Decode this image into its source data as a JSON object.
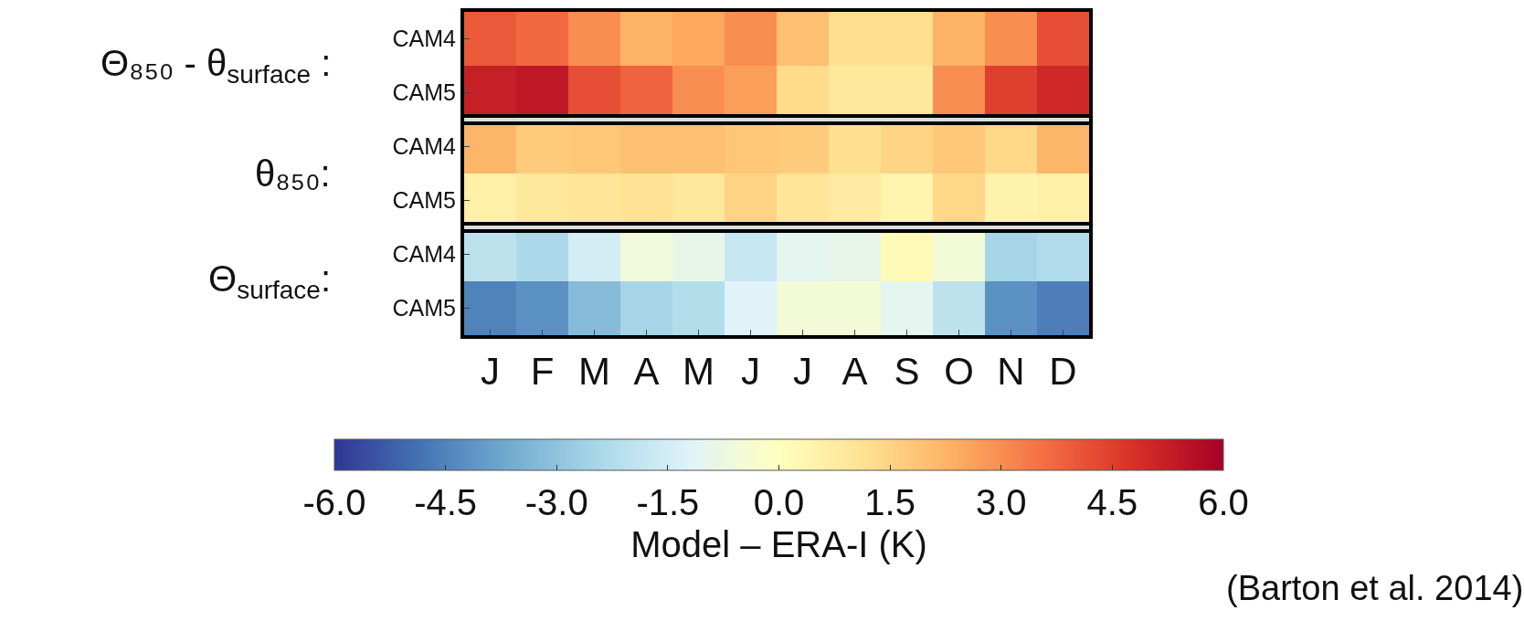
{
  "chart_data": {
    "type": "heatmap",
    "categories": [
      "J",
      "F",
      "M",
      "A",
      "M",
      "J",
      "J",
      "A",
      "S",
      "O",
      "N",
      "D"
    ],
    "y_categories": [
      "CAM4",
      "CAM5",
      "CAM4",
      "CAM5",
      "CAM4",
      "CAM5"
    ],
    "cells": [
      [
        4.0,
        3.7,
        3.0,
        2.3,
        2.5,
        3.0,
        2.0,
        1.2,
        1.2,
        2.3,
        3.0,
        4.2
      ],
      [
        5.2,
        5.4,
        4.2,
        3.8,
        3.0,
        2.7,
        1.3,
        0.9,
        0.9,
        3.0,
        4.5,
        5.0
      ],
      [
        2.2,
        1.7,
        1.8,
        2.0,
        2.0,
        1.8,
        1.7,
        1.2,
        1.5,
        1.8,
        1.4,
        2.2
      ],
      [
        0.6,
        0.9,
        1.0,
        1.1,
        0.9,
        1.5,
        1.0,
        0.8,
        0.4,
        1.4,
        0.5,
        0.6
      ],
      [
        -2.0,
        -2.4,
        -1.5,
        -0.6,
        -0.9,
        -1.8,
        -1.0,
        -0.9,
        0.2,
        -0.5,
        -2.5,
        -2.3
      ],
      [
        -4.5,
        -4.2,
        -3.2,
        -2.5,
        -2.2,
        -1.2,
        -0.5,
        -0.5,
        -1.0,
        -2.0,
        -4.2,
        -4.6
      ]
    ],
    "clim": [
      -6,
      6
    ],
    "cticks": [
      {
        "value": -6,
        "label": "-6.0"
      },
      {
        "value": -4.5,
        "label": "-4.5"
      },
      {
        "value": -3,
        "label": "-3.0"
      },
      {
        "value": -1.5,
        "label": "-1.5"
      },
      {
        "value": 0,
        "label": "0.0"
      },
      {
        "value": 1.5,
        "label": "1.5"
      },
      {
        "value": 3,
        "label": "3.0"
      },
      {
        "value": 4.5,
        "label": "4.5"
      },
      {
        "value": 6,
        "label": "6.0"
      }
    ],
    "clabel": "Model – ERA-I (K)",
    "annotations": [
      "Θ₈₅₀ - θ$_{surface}$ :",
      "θ₈₅₀:",
      "Θ$_{surface}$:",
      "(Barton et al. 2014)"
    ]
  }
}
